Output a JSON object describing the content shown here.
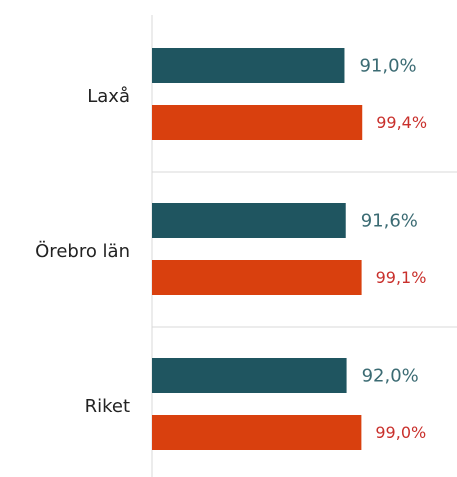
{
  "chart_data": {
    "type": "hbar",
    "categories": [
      "Laxå",
      "Örebro län",
      "Riket"
    ],
    "series": [
      {
        "color": "#1f5560",
        "label_color": "#3b6b73",
        "values": [
          91.0,
          91.6,
          92.0
        ],
        "value_labels": [
          "91,0%",
          "91,6%",
          "92,0%"
        ]
      },
      {
        "color": "#d9400e",
        "label_color": "#c9302c",
        "values": [
          99.4,
          99.1,
          99.0
        ],
        "value_labels": [
          "99,4%",
          "99,1%",
          "99,0%"
        ]
      }
    ],
    "xlim": [
      0,
      100
    ]
  }
}
